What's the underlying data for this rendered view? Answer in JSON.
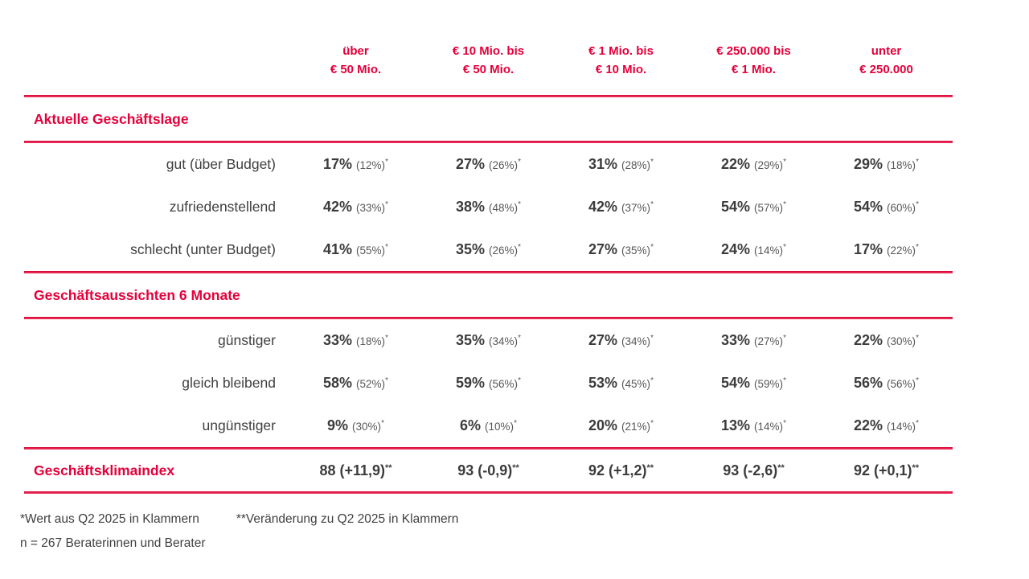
{
  "chart_data": {
    "type": "table",
    "column_headers": [
      {
        "line1": "über",
        "line2": "€ 50 Mio."
      },
      {
        "line1": "€ 10 Mio. bis",
        "line2": "€ 50 Mio."
      },
      {
        "line1": "€ 1 Mio. bis",
        "line2": "€ 10 Mio."
      },
      {
        "line1": "€ 250.000 bis",
        "line2": "€ 1 Mio."
      },
      {
        "line1": "unter",
        "line2": "€ 250.000"
      }
    ],
    "value_marker": "*",
    "sections": [
      {
        "title": "Aktuelle Geschäftslage",
        "rows": [
          {
            "label": "gut (über Budget)",
            "values": [
              {
                "main": "17%",
                "prev": "(12%)"
              },
              {
                "main": "27%",
                "prev": "(26%)"
              },
              {
                "main": "31%",
                "prev": "(28%)"
              },
              {
                "main": "22%",
                "prev": "(29%)"
              },
              {
                "main": "29%",
                "prev": "(18%)"
              }
            ]
          },
          {
            "label": "zufriedenstellend",
            "values": [
              {
                "main": "42%",
                "prev": "(33%)"
              },
              {
                "main": "38%",
                "prev": "(48%)"
              },
              {
                "main": "42%",
                "prev": "(37%)"
              },
              {
                "main": "54%",
                "prev": "(57%)"
              },
              {
                "main": "54%",
                "prev": "(60%)"
              }
            ]
          },
          {
            "label": "schlecht (unter Budget)",
            "values": [
              {
                "main": "41%",
                "prev": "(55%)"
              },
              {
                "main": "35%",
                "prev": "(26%)"
              },
              {
                "main": "27%",
                "prev": "(35%)"
              },
              {
                "main": "24%",
                "prev": "(14%)"
              },
              {
                "main": "17%",
                "prev": "(22%)"
              }
            ]
          }
        ]
      },
      {
        "title": "Geschäftsaussichten 6 Monate",
        "rows": [
          {
            "label": "günstiger",
            "values": [
              {
                "main": "33%",
                "prev": "(18%)"
              },
              {
                "main": "35%",
                "prev": "(34%)"
              },
              {
                "main": "27%",
                "prev": "(34%)"
              },
              {
                "main": "33%",
                "prev": "(27%)"
              },
              {
                "main": "22%",
                "prev": "(30%)"
              }
            ]
          },
          {
            "label": "gleich bleibend",
            "values": [
              {
                "main": "58%",
                "prev": "(52%)"
              },
              {
                "main": "59%",
                "prev": "(56%)"
              },
              {
                "main": "53%",
                "prev": "(45%)"
              },
              {
                "main": "54%",
                "prev": "(59%)"
              },
              {
                "main": "56%",
                "prev": "(56%)"
              }
            ]
          },
          {
            "label": "ungünstiger",
            "values": [
              {
                "main": "9%",
                "prev": "(30%)"
              },
              {
                "main": "6%",
                "prev": "(10%)"
              },
              {
                "main": "20%",
                "prev": "(21%)"
              },
              {
                "main": "13%",
                "prev": "(14%)"
              },
              {
                "main": "22%",
                "prev": "(14%)"
              }
            ]
          }
        ]
      }
    ],
    "index_row": {
      "label": "Geschäftsklimaindex",
      "marker": "**",
      "values": [
        "88 (+11,9)",
        "93 (-0,9)",
        "92 (+1,2)",
        "93 (-2,6)",
        "92 (+0,1)"
      ]
    }
  },
  "footnotes": {
    "note1": "*Wert aus Q2 2025 in Klammern",
    "note2": "**Veränderung zu Q2 2025 in Klammern",
    "note3": "n = 267 Beraterinnen und Berater"
  },
  "colors": {
    "accent": "#e4003a",
    "text": "#3c3c3c",
    "muted": "#575757"
  }
}
